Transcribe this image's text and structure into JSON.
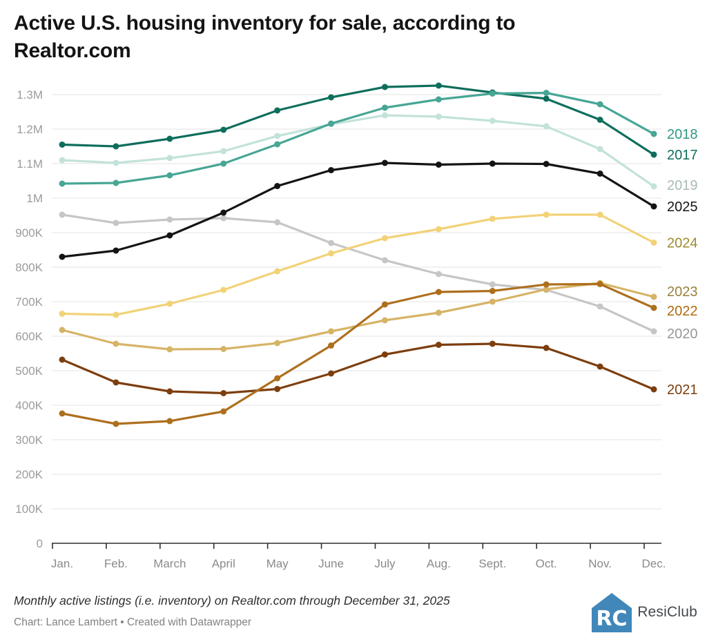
{
  "header": {
    "title": "Active U.S. housing inventory for sale, according to Realtor.com"
  },
  "footer": {
    "note": "Monthly active listings (i.e. inventory) on Realtor.com through December 31, 2025",
    "credit": "Chart: Lance Lambert • Created with Datawrapper",
    "logo_text": "ResiClub",
    "logo_letters": "RC",
    "logo_color": "#4187ba"
  },
  "chart_data": {
    "type": "line",
    "title": "Active U.S. housing inventory for sale, according to Realtor.com",
    "xlabel": "",
    "ylabel": "",
    "x_labels": [
      "Jan.",
      "Feb.",
      "March",
      "April",
      "May",
      "June",
      "July",
      "Aug.",
      "Sept.",
      "Oct.",
      "Nov.",
      "Dec."
    ],
    "y_ticks": [
      "0",
      "100K",
      "200K",
      "300K",
      "400K",
      "500K",
      "600K",
      "700K",
      "800K",
      "900K",
      "1M",
      "1.1M",
      "1.2M",
      "1.3M"
    ],
    "y_tick_step_thousands": 100,
    "ylim_thousands": [
      0,
      1300
    ],
    "grid": "horizontal",
    "legend_position": "right-end-of-line",
    "units": "active listings (thousands)",
    "series": [
      {
        "name": "2019",
        "color": "#c2e2da",
        "label_color": "#a9bab5",
        "label_dy": -2,
        "values": [
          1110,
          1102,
          1116,
          1136,
          1180,
          1214,
          1240,
          1236,
          1224,
          1208,
          1142,
          1034
        ]
      },
      {
        "name": "2020",
        "color": "#c6c6c6",
        "label_color": "#979797",
        "label_dy": 3,
        "values": [
          952,
          928,
          938,
          942,
          930,
          870,
          820,
          780,
          750,
          734,
          686,
          614
        ]
      },
      {
        "name": "2017",
        "color": "#0e6e5c",
        "label_color": "#0e6e5c",
        "label_dy": 0,
        "values": [
          1155,
          1150,
          1172,
          1198,
          1254,
          1292,
          1322,
          1326,
          1306,
          1288,
          1227,
          1126
        ]
      },
      {
        "name": "2018",
        "color": "#47a694",
        "label_color": "#2f9884",
        "label_dy": 0,
        "values": [
          1042,
          1044,
          1066,
          1100,
          1156,
          1216,
          1262,
          1286,
          1303,
          1305,
          1272,
          1186
        ]
      },
      {
        "name": "2023",
        "color": "#d6b466",
        "label_color": "#97823a",
        "label_dy": -8,
        "values": [
          618,
          578,
          562,
          563,
          580,
          614,
          646,
          668,
          700,
          736,
          754,
          714
        ]
      },
      {
        "name": "2021",
        "color": "#7d3e0e",
        "label_color": "#7d3e0e",
        "label_dy": 0,
        "values": [
          532,
          466,
          440,
          435,
          447,
          492,
          547,
          575,
          578,
          566,
          512,
          446
        ]
      },
      {
        "name": "2022",
        "color": "#ad6f1d",
        "label_color": "#b06a10",
        "label_dy": 4,
        "values": [
          376,
          346,
          354,
          382,
          478,
          573,
          692,
          728,
          731,
          750,
          751,
          682
        ]
      },
      {
        "name": "2024",
        "color": "#f2d278",
        "label_color": "#9d8a2e",
        "label_dy": 0,
        "values": [
          665,
          662,
          694,
          734,
          788,
          840,
          884,
          910,
          940,
          952,
          952,
          871
        ]
      },
      {
        "name": "2025",
        "color": "#141414",
        "label_color": "#141414",
        "label_dy": 0,
        "values": [
          830,
          848,
          892,
          958,
          1035,
          1081,
          1102,
          1097,
          1100,
          1099,
          1071,
          976
        ]
      }
    ]
  }
}
